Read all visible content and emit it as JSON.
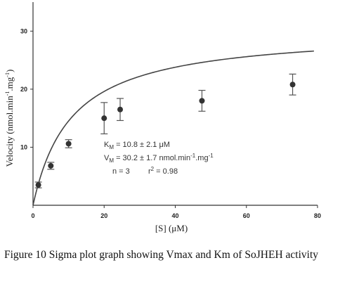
{
  "caption": "Figure 10 Sigma plot graph showing Vmax and Km of SoJHEH activity",
  "chart_data": {
    "type": "scatter",
    "xlabel": "[S] (μM)",
    "ylabel": "Velocity (nmol.min-1.mg-1)",
    "xlim": [
      0,
      80
    ],
    "ylim": [
      0,
      35
    ],
    "xticks": [
      0,
      20,
      40,
      60,
      80
    ],
    "yticks": [
      10,
      20,
      30
    ],
    "grid": false,
    "series": [
      {
        "points": [
          {
            "x": 1.5,
            "y": 3.5,
            "err": 0.5
          },
          {
            "x": 5,
            "y": 6.8,
            "err": 0.6
          },
          {
            "x": 10,
            "y": 10.6,
            "err": 0.7
          },
          {
            "x": 20,
            "y": 15.0,
            "err": 2.7
          },
          {
            "x": 24.5,
            "y": 16.5,
            "err": 1.9
          },
          {
            "x": 47.5,
            "y": 18.0,
            "err": 1.8
          },
          {
            "x": 73,
            "y": 20.8,
            "err": 1.8
          }
        ]
      }
    ],
    "fit": {
      "model": "Michaelis-Menten",
      "Vmax": 30.2,
      "Km": 10.8,
      "x_end": 79
    },
    "annotations": {
      "km_main": "K",
      "km_sub": "M",
      "km_rest": " = 10.8 ± 2.1 μM",
      "vm_main": "V",
      "vm_sub": "M",
      "vm_rest1": " = 30.2 ± 1.7 nmol.min",
      "vm_sup1": "-1",
      "vm_rest2": ".mg",
      "vm_sup2": "-1",
      "n_text": "n = 3",
      "r_main": "r",
      "r_sup": "2",
      "r_rest": " = 0.98"
    },
    "ylabel_parts": {
      "main": "Velocity (nmol.min",
      "sup1": "-1",
      "mid": ".mg",
      "sup2": "-1",
      "end": ")"
    }
  }
}
